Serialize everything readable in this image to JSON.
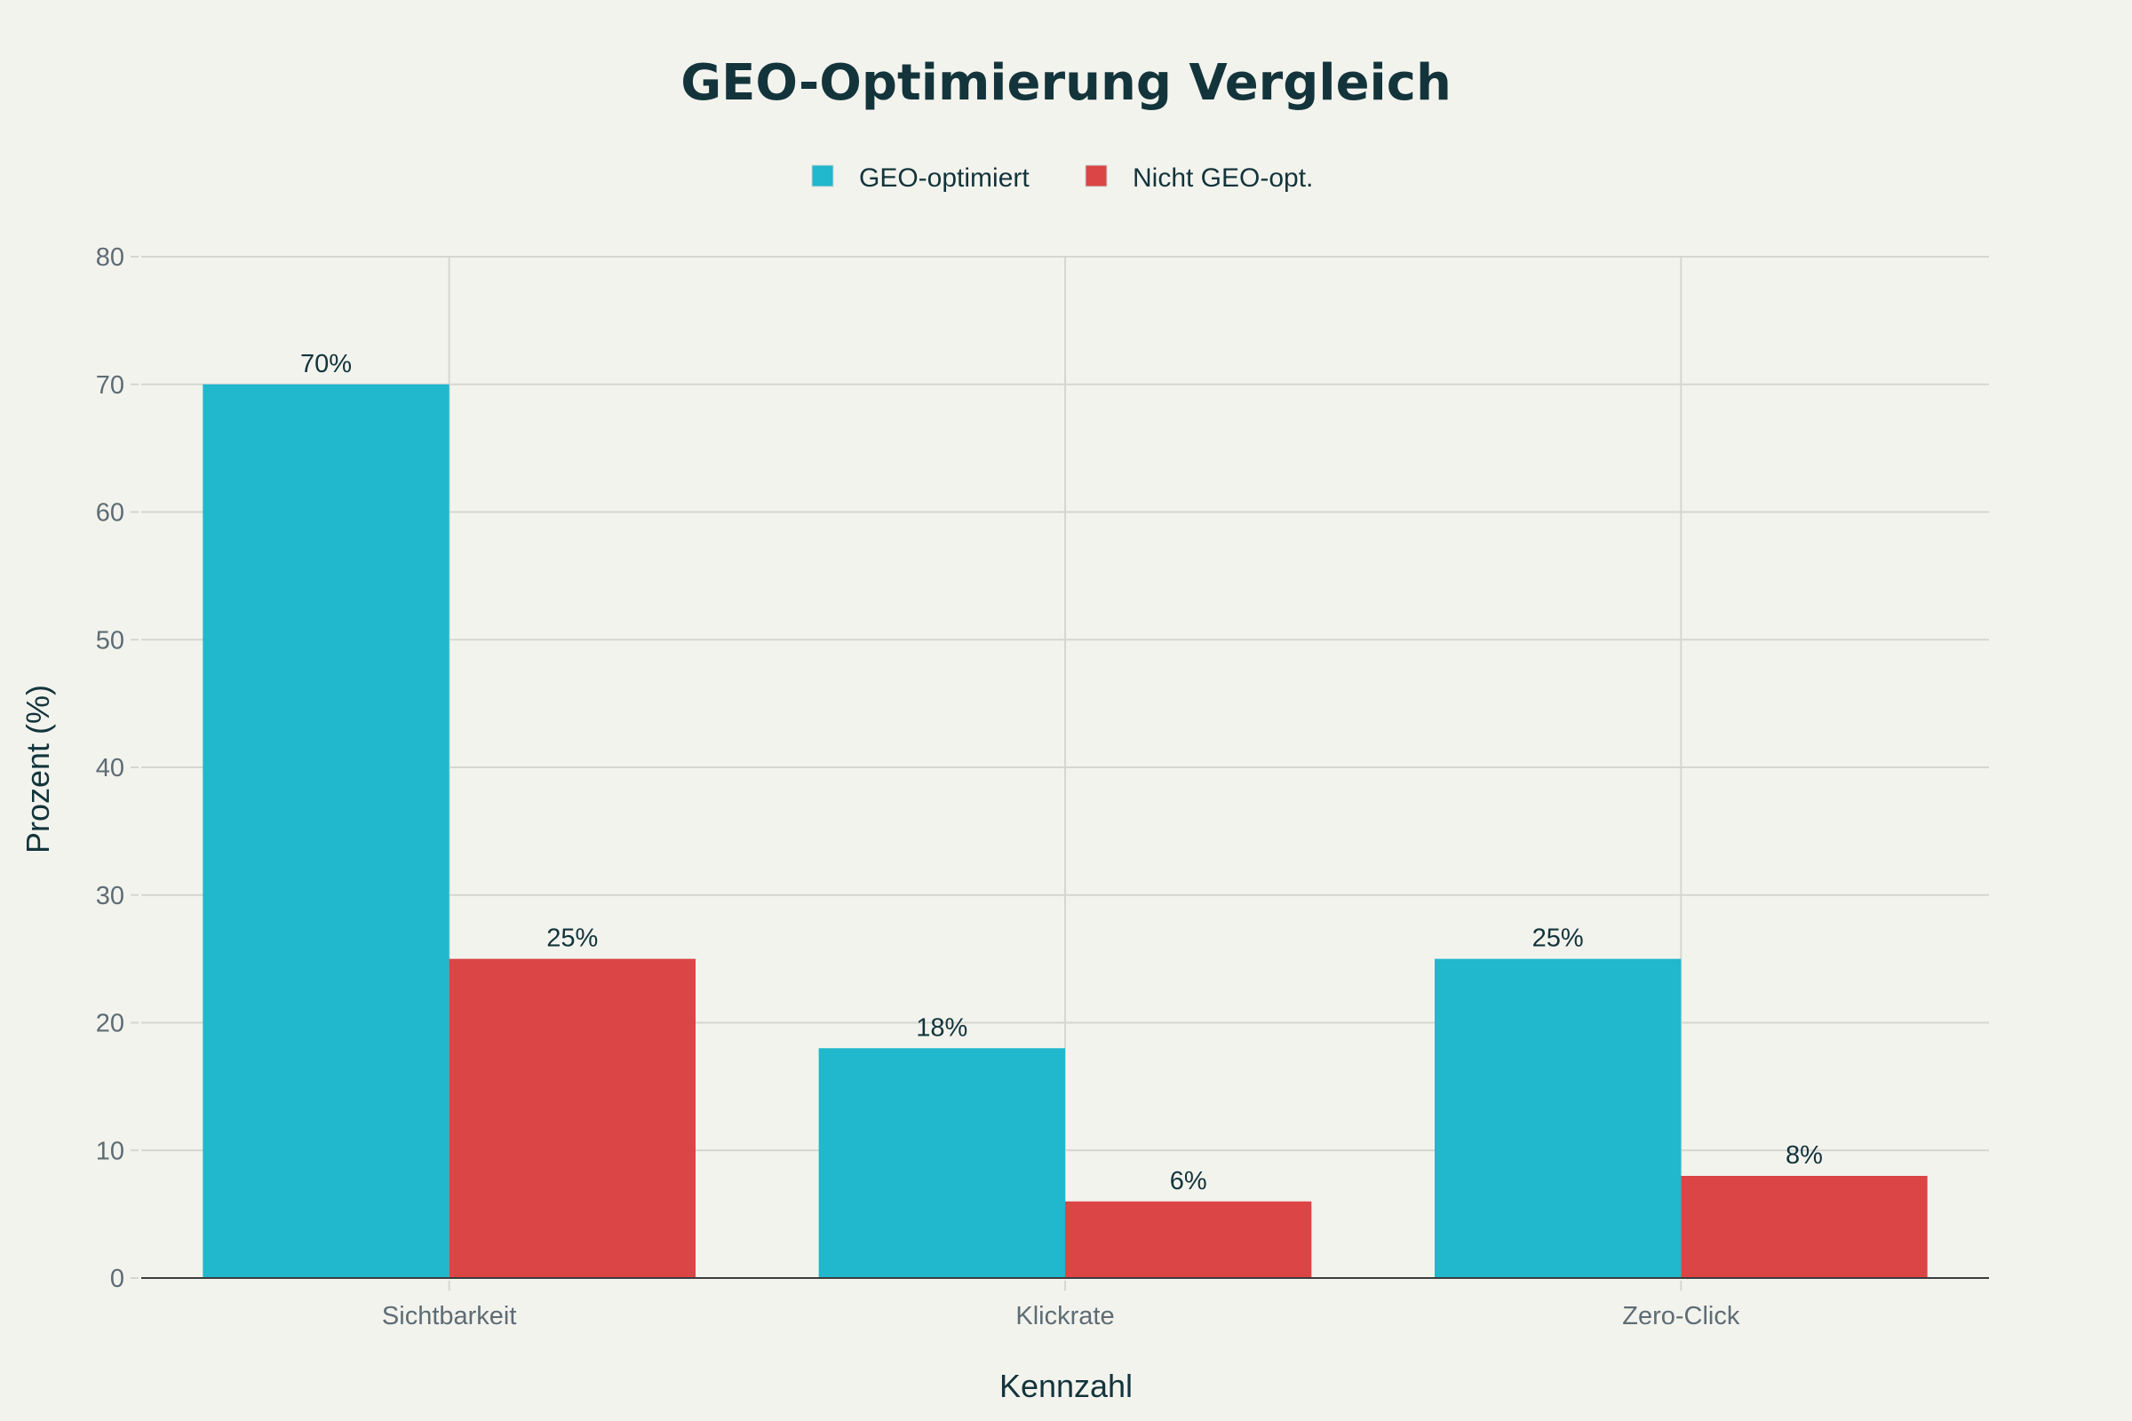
{
  "chart_data": {
    "type": "bar",
    "title": "GEO-Optimierung Vergleich",
    "xlabel": "Kennzahl",
    "ylabel": "Prozent (%)",
    "categories": [
      "Sichtbarkeit",
      "Klickrate",
      "Zero-Click"
    ],
    "series": [
      {
        "name": "GEO-optimiert",
        "values": [
          70,
          18,
          25
        ],
        "labels": [
          "70%",
          "18%",
          "25%"
        ],
        "color": "#21b7cc"
      },
      {
        "name": "Nicht GEO-opt.",
        "values": [
          25,
          6,
          8
        ],
        "labels": [
          "25%",
          "6%",
          "8%"
        ],
        "color": "#db4546"
      }
    ],
    "ylim": [
      0,
      80
    ],
    "yticks": [
      "0",
      "10",
      "20",
      "30",
      "40",
      "50",
      "60",
      "70",
      "80"
    ],
    "grid": true,
    "legend": "top-center"
  }
}
